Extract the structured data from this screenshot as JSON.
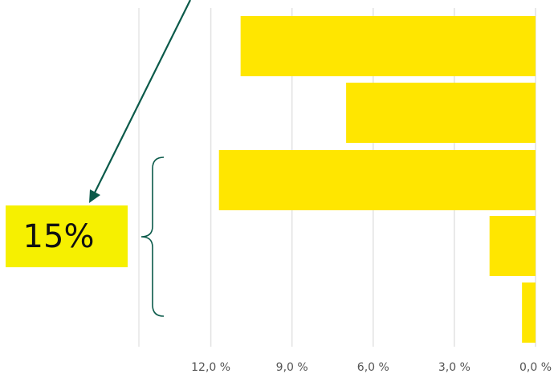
{
  "chart_data": {
    "type": "bar",
    "orientation": "horizontal",
    "x_axis": "reversed",
    "values": [
      10.9,
      7.0,
      11.7,
      1.7,
      0.5
    ],
    "xlim": [
      13.0,
      0.0
    ],
    "tick_values": [
      12,
      9,
      6,
      3,
      0
    ],
    "tick_labels": [
      "12,0 %",
      "9,0 %",
      "6,0 %",
      "3,0 %",
      "0,0 %"
    ],
    "grid": true,
    "bar_color": "#ffe600"
  },
  "annotation": {
    "label": "15%",
    "box_color": "#f6f000",
    "arrow_color": "#0b5a4a",
    "bracket_color": "#0b5a4a",
    "bracketed_bars": [
      2,
      3,
      4
    ]
  }
}
